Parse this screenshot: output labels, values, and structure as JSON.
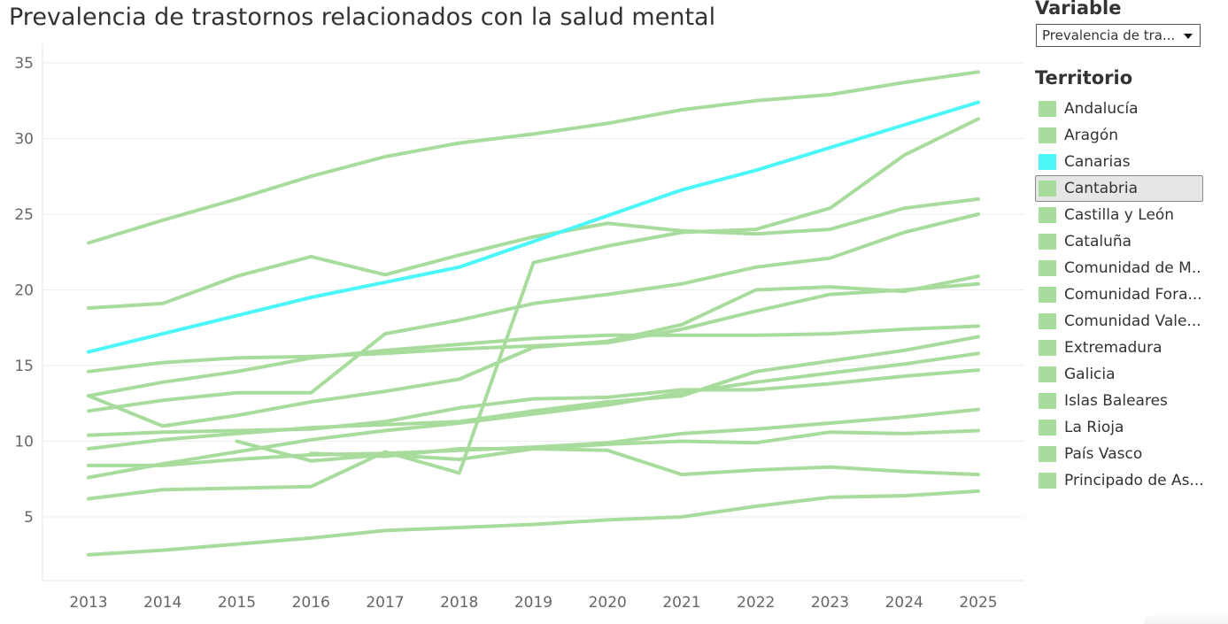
{
  "title": "Prevalencia de trastornos relacionados con la salud mental",
  "filters": {
    "variable_heading": "Variable",
    "variable_selected": "Prevalencia de tra...",
    "territory_heading": "Territorio"
  },
  "colors": {
    "default": "#a8dc9c",
    "highlight": "#4bf6f9",
    "grid": "#eeeeee"
  },
  "legend": [
    {
      "label": "Andalucía"
    },
    {
      "label": "Aragón"
    },
    {
      "label": "Canarias",
      "highlight": true
    },
    {
      "label": "Cantabria",
      "hover": true
    },
    {
      "label": "Castilla y León"
    },
    {
      "label": "Cataluña"
    },
    {
      "label": "Comunidad de M..."
    },
    {
      "label": "Comunidad Fora..."
    },
    {
      "label": "Comunidad Vale..."
    },
    {
      "label": "Extremadura"
    },
    {
      "label": "Galicia"
    },
    {
      "label": "Islas Baleares"
    },
    {
      "label": "La Rioja"
    },
    {
      "label": "País Vasco"
    },
    {
      "label": "Principado de As..."
    }
  ],
  "chart_data": {
    "type": "line",
    "title": "Prevalencia de trastornos relacionados con la salud mental",
    "x": [
      2013,
      2014,
      2015,
      2016,
      2017,
      2018,
      2019,
      2020,
      2021,
      2022,
      2023,
      2024,
      2025
    ],
    "ylim": [
      0,
      36
    ],
    "yticks": [
      5,
      10,
      15,
      20,
      25,
      30,
      35
    ],
    "grid": true,
    "series": [
      {
        "values": [
          23.1,
          24.6,
          26.0,
          27.5,
          28.8,
          29.7,
          30.3,
          31.0,
          31.9,
          32.5,
          32.9,
          33.7,
          34.4
        ]
      },
      {
        "values": [
          15.9,
          17.1,
          18.3,
          19.5,
          20.5,
          21.5,
          23.2,
          24.9,
          26.6,
          27.9,
          29.4,
          30.9,
          32.4
        ],
        "highlight": true
      },
      {
        "values": [
          18.8,
          19.1,
          20.9,
          22.2,
          21.0,
          22.3,
          23.5,
          24.4,
          23.9,
          23.7,
          24.0,
          25.4,
          26.0
        ]
      },
      {
        "values": [
          12.0,
          12.7,
          13.2,
          13.2,
          17.1,
          18.0,
          19.1,
          19.7,
          20.4,
          21.5,
          22.1,
          23.8,
          25.0
        ]
      },
      {
        "values": [
          13.0,
          11.0,
          11.7,
          12.6,
          13.3,
          14.1,
          16.2,
          16.6,
          17.7,
          20.0,
          20.2,
          19.9,
          20.9
        ]
      },
      {
        "values": [
          14.6,
          15.2,
          15.5,
          15.6,
          15.8,
          16.1,
          16.3,
          16.5,
          17.4,
          18.6,
          19.7,
          20.0,
          20.4
        ]
      },
      {
        "values": [
          13.0,
          13.9,
          14.6,
          15.5,
          16.0,
          16.4,
          16.8,
          17.0,
          17.0,
          17.0,
          17.1,
          17.4,
          17.6
        ]
      },
      {
        "values": [
          10.4,
          10.6,
          10.7,
          10.8,
          11.3,
          12.2,
          12.8,
          12.9,
          13.4,
          13.4,
          13.8,
          14.3,
          14.7
        ]
      },
      {
        "values": [
          9.5,
          10.1,
          10.5,
          10.9,
          11.1,
          11.3,
          12.0,
          12.6,
          13.0,
          14.6,
          15.3,
          16.0,
          16.9
        ]
      },
      {
        "values": [
          7.6,
          8.5,
          9.3,
          10.1,
          10.7,
          11.2,
          11.8,
          12.4,
          13.2,
          13.9,
          14.5,
          15.1,
          15.8
        ]
      },
      {
        "values": [
          8.4,
          8.4,
          8.8,
          9.1,
          9.2,
          9.4,
          9.6,
          9.9,
          10.5,
          10.8,
          11.2,
          11.6,
          12.1
        ]
      },
      {
        "values": [
          null,
          null,
          10.0,
          8.7,
          9.1,
          8.8,
          9.5,
          9.8,
          10.0,
          9.9,
          10.6,
          10.5,
          10.7
        ]
      },
      {
        "values": [
          6.2,
          6.8,
          6.9,
          7.0,
          9.3,
          7.9,
          21.8,
          22.9,
          23.8,
          24.0,
          25.4,
          28.9,
          31.3
        ]
      },
      {
        "values": [
          null,
          null,
          null,
          9.2,
          9.0,
          9.5,
          9.5,
          9.4,
          7.8,
          8.1,
          8.3,
          8.0,
          7.8
        ]
      },
      {
        "values": [
          2.5,
          2.8,
          3.2,
          3.6,
          4.1,
          4.3,
          4.5,
          4.8,
          5.0,
          5.7,
          6.3,
          6.4,
          6.7
        ]
      }
    ]
  }
}
